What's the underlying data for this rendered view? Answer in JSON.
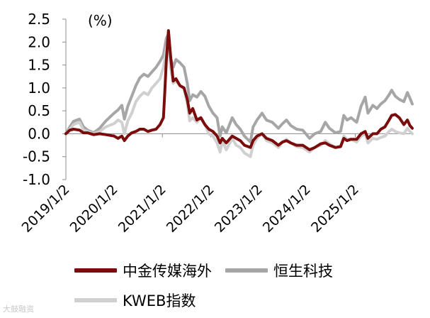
{
  "chart_data": {
    "type": "line",
    "unit_label": "(%)",
    "xlabel": "",
    "ylabel": "",
    "ylim": [
      -1.0,
      2.5
    ],
    "yticks": [
      "2.5",
      "2.0",
      "1.5",
      "1.0",
      "0.5",
      "0.0",
      "-0.5",
      "-1.0"
    ],
    "x_range": [
      "2019-01-02",
      "2026-03-10"
    ],
    "xticks": [
      {
        "date": "2019-01-02",
        "label": "2019/1/2"
      },
      {
        "date": "2020-01-02",
        "label": "2020/1/2"
      },
      {
        "date": "2021-01-02",
        "label": "2021/1/2"
      },
      {
        "date": "2022-01-02",
        "label": "2022/1/2"
      },
      {
        "date": "2023-01-02",
        "label": "2023/1/2"
      },
      {
        "date": "2024-01-02",
        "label": "2024/1/2"
      },
      {
        "date": "2025-01-02",
        "label": "2025/1/2"
      }
    ],
    "grid": false,
    "legend_position": "bottom",
    "series": [
      {
        "name": "恒生科技",
        "color": "#a6a6a6",
        "points": [
          [
            "2019-01-02",
            0.0
          ],
          [
            "2019-02-01",
            0.15
          ],
          [
            "2019-03-01",
            0.27
          ],
          [
            "2019-04-15",
            0.32
          ],
          [
            "2019-05-15",
            0.15
          ],
          [
            "2019-06-15",
            0.08
          ],
          [
            "2019-08-01",
            0.02
          ],
          [
            "2019-09-15",
            0.12
          ],
          [
            "2019-11-01",
            0.28
          ],
          [
            "2020-01-02",
            0.45
          ],
          [
            "2020-02-01",
            0.52
          ],
          [
            "2020-03-01",
            0.62
          ],
          [
            "2020-03-20",
            0.32
          ],
          [
            "2020-04-15",
            0.6
          ],
          [
            "2020-05-15",
            0.82
          ],
          [
            "2020-06-15",
            1.05
          ],
          [
            "2020-07-15",
            1.22
          ],
          [
            "2020-08-15",
            1.3
          ],
          [
            "2020-09-15",
            1.25
          ],
          [
            "2020-10-15",
            1.35
          ],
          [
            "2020-11-15",
            1.45
          ],
          [
            "2020-12-15",
            1.58
          ],
          [
            "2021-01-10",
            1.72
          ],
          [
            "2021-02-01",
            2.08
          ],
          [
            "2021-02-17",
            2.18
          ],
          [
            "2021-03-05",
            1.65
          ],
          [
            "2021-03-25",
            1.45
          ],
          [
            "2021-04-15",
            1.62
          ],
          [
            "2021-05-15",
            1.55
          ],
          [
            "2021-06-15",
            1.45
          ],
          [
            "2021-07-10",
            1.1
          ],
          [
            "2021-07-28",
            0.72
          ],
          [
            "2021-08-20",
            0.85
          ],
          [
            "2021-09-20",
            0.8
          ],
          [
            "2021-10-20",
            0.92
          ],
          [
            "2021-11-20",
            0.82
          ],
          [
            "2021-12-20",
            0.6
          ],
          [
            "2022-01-20",
            0.45
          ],
          [
            "2022-02-20",
            0.35
          ],
          [
            "2022-03-15",
            -0.05
          ],
          [
            "2022-04-01",
            0.15
          ],
          [
            "2022-05-01",
            0.02
          ],
          [
            "2022-06-15",
            0.35
          ],
          [
            "2022-07-15",
            0.2
          ],
          [
            "2022-08-15",
            0.1
          ],
          [
            "2022-09-15",
            -0.05
          ],
          [
            "2022-10-31",
            -0.18
          ],
          [
            "2022-11-20",
            0.15
          ],
          [
            "2022-12-20",
            0.3
          ],
          [
            "2023-01-27",
            0.45
          ],
          [
            "2023-03-01",
            0.3
          ],
          [
            "2023-04-15",
            0.25
          ],
          [
            "2023-05-31",
            0.12
          ],
          [
            "2023-07-01",
            0.22
          ],
          [
            "2023-07-31",
            0.3
          ],
          [
            "2023-09-01",
            0.18
          ],
          [
            "2023-10-15",
            0.1
          ],
          [
            "2023-12-01",
            0.08
          ],
          [
            "2024-01-22",
            -0.1
          ],
          [
            "2024-03-01",
            0.0
          ],
          [
            "2024-04-15",
            0.05
          ],
          [
            "2024-05-20",
            0.25
          ],
          [
            "2024-06-20",
            0.12
          ],
          [
            "2024-08-05",
            0.02
          ],
          [
            "2024-09-13",
            0.05
          ],
          [
            "2024-10-07",
            0.4
          ],
          [
            "2024-11-01",
            0.3
          ],
          [
            "2024-12-01",
            0.35
          ],
          [
            "2025-01-13",
            0.25
          ],
          [
            "2025-02-15",
            0.6
          ],
          [
            "2025-03-18",
            0.8
          ],
          [
            "2025-04-08",
            0.45
          ],
          [
            "2025-05-15",
            0.62
          ],
          [
            "2025-06-15",
            0.55
          ],
          [
            "2025-07-15",
            0.65
          ],
          [
            "2025-08-15",
            0.72
          ],
          [
            "2025-09-15",
            0.85
          ],
          [
            "2025-10-05",
            0.95
          ],
          [
            "2025-11-01",
            0.82
          ],
          [
            "2025-12-01",
            0.75
          ],
          [
            "2026-01-05",
            0.7
          ],
          [
            "2026-02-01",
            0.9
          ],
          [
            "2026-02-20",
            0.78
          ],
          [
            "2026-03-10",
            0.65
          ]
        ]
      },
      {
        "name": "KWEB指数",
        "color": "#d0d0d0",
        "points": [
          [
            "2019-01-02",
            0.0
          ],
          [
            "2019-02-01",
            0.1
          ],
          [
            "2019-03-01",
            0.2
          ],
          [
            "2019-04-15",
            0.25
          ],
          [
            "2019-05-15",
            0.08
          ],
          [
            "2019-06-15",
            0.05
          ],
          [
            "2019-08-01",
            0.0
          ],
          [
            "2019-09-15",
            0.05
          ],
          [
            "2019-11-01",
            0.15
          ],
          [
            "2020-01-02",
            0.22
          ],
          [
            "2020-02-01",
            0.3
          ],
          [
            "2020-03-01",
            0.25
          ],
          [
            "2020-03-20",
            0.0
          ],
          [
            "2020-04-15",
            0.28
          ],
          [
            "2020-05-15",
            0.45
          ],
          [
            "2020-06-15",
            0.7
          ],
          [
            "2020-07-15",
            0.82
          ],
          [
            "2020-08-15",
            0.9
          ],
          [
            "2020-09-15",
            0.85
          ],
          [
            "2020-10-15",
            1.0
          ],
          [
            "2020-11-15",
            1.1
          ],
          [
            "2020-12-15",
            1.2
          ],
          [
            "2021-01-10",
            1.45
          ],
          [
            "2021-02-01",
            1.85
          ],
          [
            "2021-02-17",
            2.05
          ],
          [
            "2021-03-05",
            1.45
          ],
          [
            "2021-03-25",
            1.1
          ],
          [
            "2021-04-15",
            1.15
          ],
          [
            "2021-05-15",
            1.05
          ],
          [
            "2021-06-15",
            0.98
          ],
          [
            "2021-07-10",
            0.65
          ],
          [
            "2021-07-28",
            0.28
          ],
          [
            "2021-08-20",
            0.35
          ],
          [
            "2021-09-20",
            0.25
          ],
          [
            "2021-10-20",
            0.35
          ],
          [
            "2021-11-20",
            0.2
          ],
          [
            "2021-12-20",
            0.0
          ],
          [
            "2022-01-20",
            -0.05
          ],
          [
            "2022-02-20",
            -0.2
          ],
          [
            "2022-03-15",
            -0.4
          ],
          [
            "2022-04-01",
            -0.15
          ],
          [
            "2022-05-01",
            -0.35
          ],
          [
            "2022-06-15",
            -0.1
          ],
          [
            "2022-07-15",
            -0.25
          ],
          [
            "2022-08-15",
            -0.3
          ],
          [
            "2022-09-15",
            -0.42
          ],
          [
            "2022-10-31",
            -0.5
          ],
          [
            "2022-11-20",
            -0.25
          ],
          [
            "2022-12-20",
            -0.1
          ],
          [
            "2023-01-27",
            0.0
          ],
          [
            "2023-03-01",
            -0.15
          ],
          [
            "2023-04-15",
            -0.2
          ],
          [
            "2023-05-31",
            -0.3
          ],
          [
            "2023-07-01",
            -0.18
          ],
          [
            "2023-07-31",
            -0.12
          ],
          [
            "2023-09-01",
            -0.2
          ],
          [
            "2023-10-15",
            -0.28
          ],
          [
            "2023-12-01",
            -0.3
          ],
          [
            "2024-01-22",
            -0.4
          ],
          [
            "2024-03-01",
            -0.3
          ],
          [
            "2024-04-15",
            -0.25
          ],
          [
            "2024-05-20",
            -0.15
          ],
          [
            "2024-06-20",
            -0.22
          ],
          [
            "2024-08-05",
            -0.3
          ],
          [
            "2024-09-13",
            -0.28
          ],
          [
            "2024-10-07",
            -0.05
          ],
          [
            "2024-11-01",
            -0.12
          ],
          [
            "2024-12-01",
            -0.12
          ],
          [
            "2025-01-13",
            -0.18
          ],
          [
            "2025-02-15",
            -0.05
          ],
          [
            "2025-03-18",
            0.0
          ],
          [
            "2025-04-08",
            -0.2
          ],
          [
            "2025-05-15",
            -0.1
          ],
          [
            "2025-06-15",
            -0.12
          ],
          [
            "2025-07-15",
            -0.08
          ],
          [
            "2025-08-15",
            -0.05
          ],
          [
            "2025-09-15",
            0.05
          ],
          [
            "2025-10-05",
            0.1
          ],
          [
            "2025-11-01",
            0.05
          ],
          [
            "2025-12-01",
            0.02
          ],
          [
            "2026-01-05",
            0.0
          ],
          [
            "2026-02-01",
            0.12
          ],
          [
            "2026-02-20",
            0.05
          ],
          [
            "2026-03-10",
            0.0
          ]
        ]
      },
      {
        "name": "中金传媒海外",
        "color": "#7b0c0c",
        "points": [
          [
            "2019-01-02",
            0.0
          ],
          [
            "2019-02-01",
            0.08
          ],
          [
            "2019-03-01",
            0.1
          ],
          [
            "2019-04-15",
            0.08
          ],
          [
            "2019-05-15",
            0.02
          ],
          [
            "2019-06-15",
            0.02
          ],
          [
            "2019-08-01",
            -0.02
          ],
          [
            "2019-09-15",
            0.0
          ],
          [
            "2019-11-01",
            -0.02
          ],
          [
            "2020-01-02",
            -0.05
          ],
          [
            "2020-02-01",
            -0.1
          ],
          [
            "2020-03-01",
            -0.05
          ],
          [
            "2020-03-20",
            -0.15
          ],
          [
            "2020-04-15",
            -0.05
          ],
          [
            "2020-05-15",
            0.02
          ],
          [
            "2020-06-15",
            0.05
          ],
          [
            "2020-07-15",
            0.1
          ],
          [
            "2020-08-15",
            0.1
          ],
          [
            "2020-09-15",
            0.05
          ],
          [
            "2020-10-15",
            0.08
          ],
          [
            "2020-11-15",
            0.1
          ],
          [
            "2020-12-15",
            0.2
          ],
          [
            "2021-01-10",
            0.35
          ],
          [
            "2021-01-20",
            0.9
          ],
          [
            "2021-02-01",
            1.6
          ],
          [
            "2021-02-17",
            2.25
          ],
          [
            "2021-03-05",
            1.7
          ],
          [
            "2021-03-25",
            1.15
          ],
          [
            "2021-04-15",
            1.2
          ],
          [
            "2021-05-15",
            1.05
          ],
          [
            "2021-06-15",
            1.0
          ],
          [
            "2021-07-10",
            0.75
          ],
          [
            "2021-07-28",
            0.45
          ],
          [
            "2021-08-20",
            0.55
          ],
          [
            "2021-09-20",
            0.3
          ],
          [
            "2021-10-20",
            0.35
          ],
          [
            "2021-11-20",
            0.2
          ],
          [
            "2021-12-20",
            0.1
          ],
          [
            "2022-01-20",
            0.05
          ],
          [
            "2022-02-20",
            -0.05
          ],
          [
            "2022-03-15",
            -0.2
          ],
          [
            "2022-04-01",
            -0.1
          ],
          [
            "2022-05-01",
            -0.2
          ],
          [
            "2022-06-15",
            -0.05
          ],
          [
            "2022-07-15",
            -0.1
          ],
          [
            "2022-08-15",
            -0.15
          ],
          [
            "2022-09-15",
            -0.25
          ],
          [
            "2022-10-31",
            -0.3
          ],
          [
            "2022-11-20",
            -0.15
          ],
          [
            "2022-12-20",
            -0.05
          ],
          [
            "2023-01-27",
            0.0
          ],
          [
            "2023-03-01",
            -0.1
          ],
          [
            "2023-04-15",
            -0.15
          ],
          [
            "2023-05-31",
            -0.25
          ],
          [
            "2023-07-01",
            -0.18
          ],
          [
            "2023-07-31",
            -0.15
          ],
          [
            "2023-09-01",
            -0.2
          ],
          [
            "2023-10-15",
            -0.25
          ],
          [
            "2023-12-01",
            -0.25
          ],
          [
            "2024-01-22",
            -0.35
          ],
          [
            "2024-03-01",
            -0.3
          ],
          [
            "2024-04-15",
            -0.22
          ],
          [
            "2024-05-20",
            -0.2
          ],
          [
            "2024-06-20",
            -0.25
          ],
          [
            "2024-08-05",
            -0.3
          ],
          [
            "2024-09-13",
            -0.28
          ],
          [
            "2024-10-07",
            -0.1
          ],
          [
            "2024-11-01",
            -0.15
          ],
          [
            "2024-12-01",
            -0.12
          ],
          [
            "2025-01-13",
            -0.12
          ],
          [
            "2025-02-15",
            0.0
          ],
          [
            "2025-03-18",
            0.05
          ],
          [
            "2025-04-08",
            -0.1
          ],
          [
            "2025-05-15",
            0.0
          ],
          [
            "2025-06-15",
            0.0
          ],
          [
            "2025-07-15",
            0.1
          ],
          [
            "2025-08-15",
            0.15
          ],
          [
            "2025-09-15",
            0.3
          ],
          [
            "2025-10-05",
            0.4
          ],
          [
            "2025-11-01",
            0.42
          ],
          [
            "2025-12-01",
            0.35
          ],
          [
            "2026-01-05",
            0.2
          ],
          [
            "2026-02-01",
            0.3
          ],
          [
            "2026-02-20",
            0.18
          ],
          [
            "2026-03-10",
            0.12
          ]
        ]
      }
    ]
  },
  "legend": {
    "items": [
      {
        "name": "中金传媒海外",
        "color": "#7b0c0c"
      },
      {
        "name": "恒生科技",
        "color": "#a6a6a6"
      },
      {
        "name": "KWEB指数",
        "color": "#d0d0d0"
      }
    ]
  },
  "watermark": {
    "text": "大鼓融资"
  }
}
